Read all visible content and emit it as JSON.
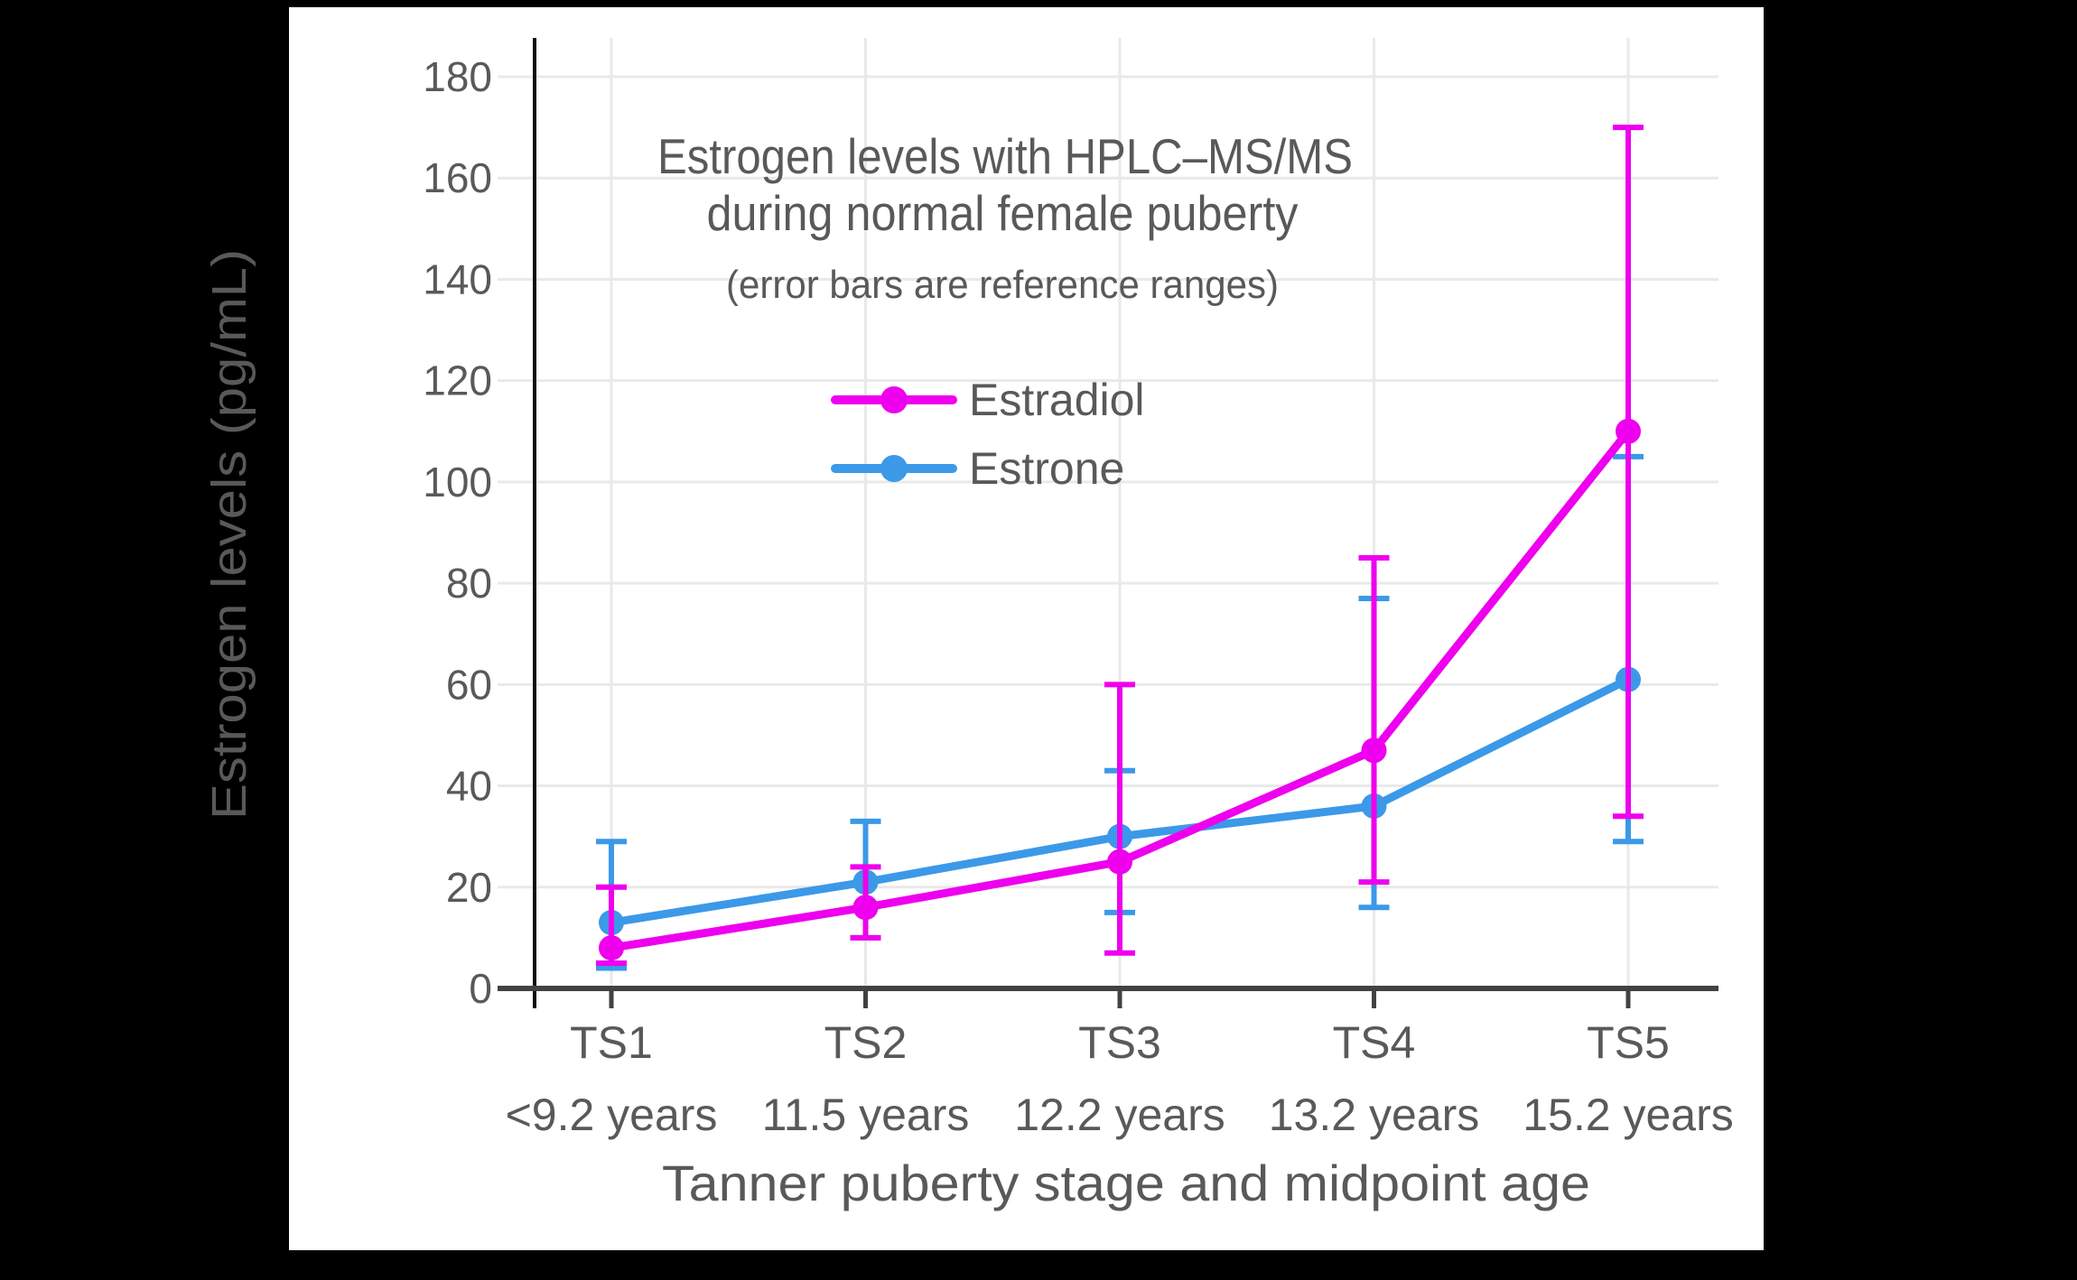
{
  "figure": {
    "outer_background": "#000000",
    "panel_background": "#ffffff",
    "text_color": "#595959",
    "grid_color": "#E9E9E9",
    "axis_color": "#424242",
    "spine_color": "#111111"
  },
  "chart_data": {
    "type": "line",
    "title": "Estrogen levels with HPLC–MS/MS",
    "title_line2": "during normal female puberty",
    "subtitle": "(error bars are reference ranges)",
    "xlabel": "Tanner puberty stage and midpoint age",
    "ylabel": "Estrogen levels (pg/mL)",
    "categories": [
      "TS1",
      "TS2",
      "TS3",
      "TS4",
      "TS5"
    ],
    "category_sublabels": [
      "<9.2 years",
      "11.5 years",
      "12.2 years",
      "13.2 years",
      "15.2 years"
    ],
    "yticks": [
      0,
      20,
      40,
      60,
      80,
      100,
      120,
      140,
      160,
      180
    ],
    "ylim": [
      0,
      188
    ],
    "grid": true,
    "legend_position": "upper-center-inside",
    "error_bars": "asymmetric reference ranges (low/high)",
    "series": [
      {
        "name": "Estradiol",
        "color": "#EE00EE",
        "values": [
          8,
          16,
          25,
          47,
          110
        ],
        "range_low": [
          5,
          10,
          7,
          21,
          34
        ],
        "range_high": [
          20,
          24,
          60,
          85,
          170
        ]
      },
      {
        "name": "Estrone",
        "color": "#3B99E8",
        "values": [
          13,
          21,
          30,
          36,
          61
        ],
        "range_low": [
          4,
          10,
          15,
          16,
          29
        ],
        "range_high": [
          29,
          33,
          43,
          77,
          105
        ]
      }
    ]
  }
}
